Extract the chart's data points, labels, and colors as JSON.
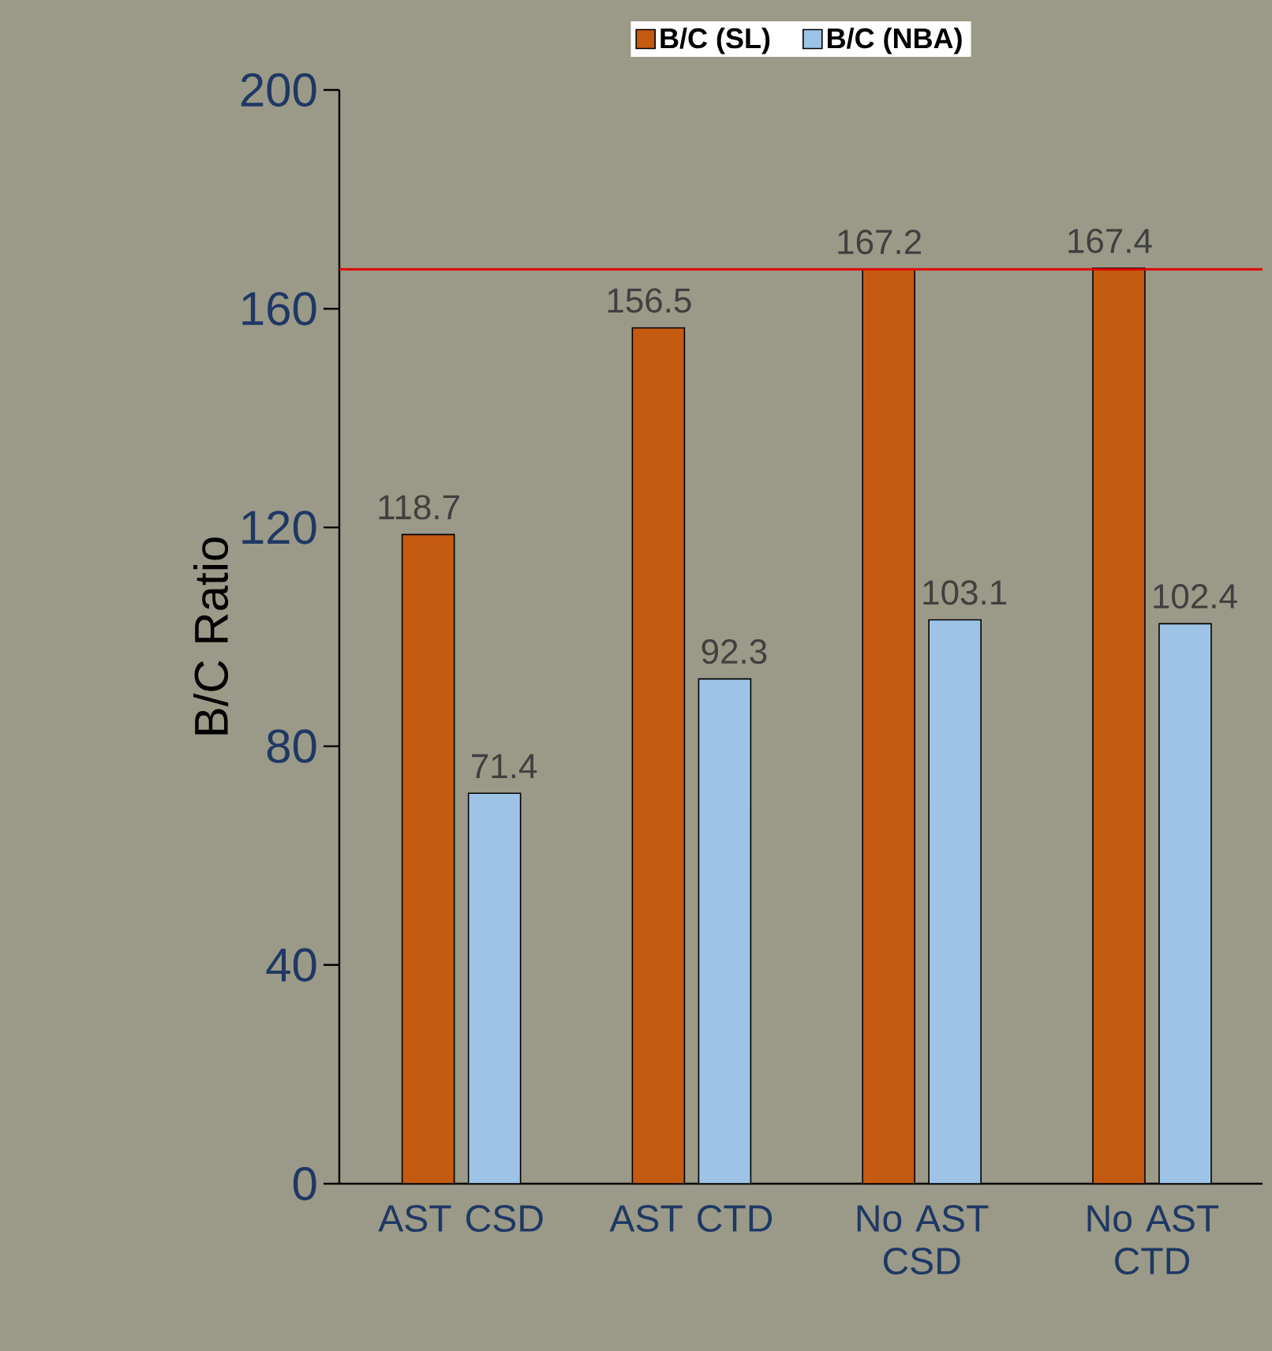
{
  "chart_data": {
    "type": "bar",
    "ylabel": "B/C Ratio",
    "categories": [
      "AST CSD",
      "AST CTD",
      "No AST CSD",
      "No AST CTD"
    ],
    "series": [
      {
        "name": "B/C (SL)",
        "color": "#c55a11",
        "values": [
          118.7,
          156.5,
          167.2,
          167.4
        ]
      },
      {
        "name": "B/C (NBA)",
        "color": "#9dc3e6",
        "values": [
          71.4,
          92.3,
          103.1,
          102.4
        ]
      }
    ],
    "ylim": [
      0,
      200
    ],
    "yticks": [
      0,
      40,
      80,
      120,
      160,
      200
    ],
    "data_labels": true,
    "legend": "top",
    "grid": false,
    "ref_lines": [
      {
        "axis": "y",
        "value": 167.2,
        "color": "#e00000"
      }
    ]
  }
}
